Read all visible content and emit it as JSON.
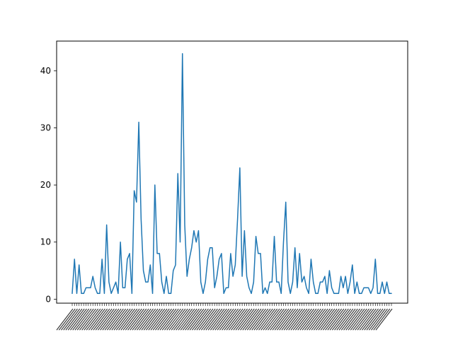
{
  "chart_data": {
    "type": "line",
    "title": "",
    "xlabel": "",
    "ylabel": "",
    "ylim": [
      -0.7,
      45.2
    ],
    "yticks": [
      0,
      10,
      20,
      30,
      40
    ],
    "grid": false,
    "series": [
      {
        "color": "#1f77b4",
        "values": [
          1,
          7,
          1,
          6,
          1,
          1,
          2,
          2,
          2,
          4,
          2,
          1,
          1,
          7,
          1,
          13,
          3,
          1,
          2,
          3,
          1,
          10,
          2,
          2,
          7,
          8,
          1,
          19,
          17,
          31,
          14,
          5,
          3,
          3,
          6,
          1,
          20,
          8,
          8,
          3,
          1,
          4,
          1,
          1,
          5,
          6,
          22,
          10,
          43,
          13,
          4,
          7,
          9,
          12,
          10,
          12,
          3,
          1,
          3,
          7,
          9,
          9,
          2,
          4,
          7,
          8,
          1,
          2,
          2,
          8,
          4,
          6,
          14,
          23,
          4,
          12,
          4,
          2,
          1,
          3,
          11,
          8,
          8,
          1,
          2,
          1,
          3,
          3,
          11,
          3,
          3,
          1,
          10,
          17,
          3,
          1,
          3,
          9,
          2,
          8,
          3,
          4,
          2,
          1,
          7,
          3,
          1,
          1,
          3,
          3,
          4,
          1,
          5,
          2,
          1,
          1,
          1,
          4,
          2,
          4,
          1,
          3,
          6,
          1,
          3,
          1,
          1,
          2,
          2,
          2,
          1,
          2,
          7,
          1,
          1,
          3,
          1,
          3,
          1,
          1
        ]
      }
    ]
  }
}
